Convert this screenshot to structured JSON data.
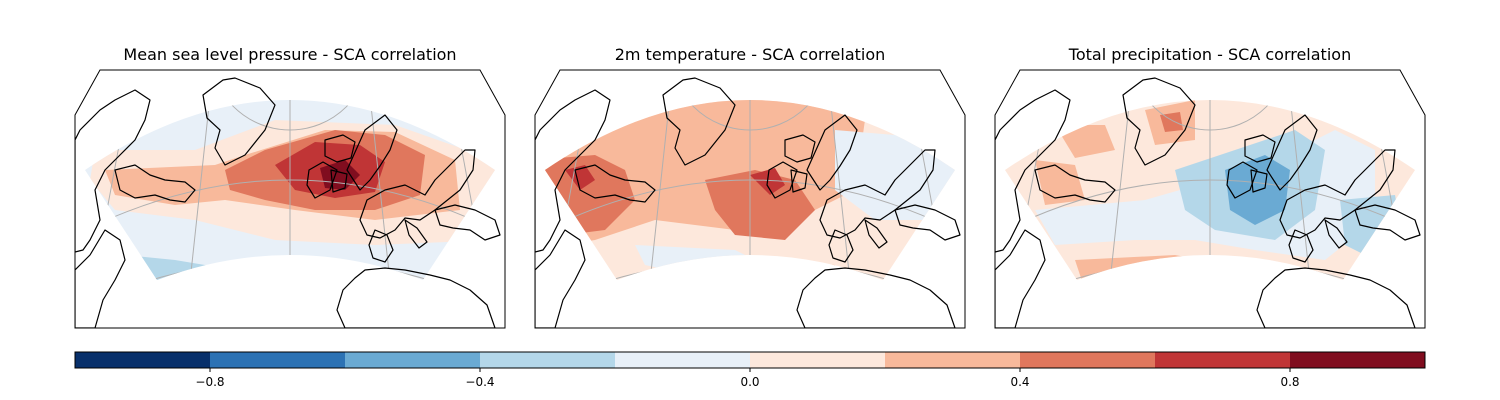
{
  "panels": [
    {
      "id": "mslp",
      "title": "Mean sea level pressure - SCA correlation"
    },
    {
      "id": "t2m",
      "title": "2m temperature - SCA correlation"
    },
    {
      "id": "precip",
      "title": "Total precipitation - SCA correlation"
    }
  ],
  "colorbar": {
    "min": -1.0,
    "max": 1.0,
    "boundaries": [
      -1.0,
      -0.8,
      -0.6,
      -0.4,
      -0.2,
      0.0,
      0.2,
      0.4,
      0.6,
      0.8,
      1.0
    ],
    "colors": [
      "#08306b",
      "#2c72b4",
      "#6aaad3",
      "#b4d7e9",
      "#e8f0f8",
      "#fde8dc",
      "#f8b99b",
      "#e0775d",
      "#c03536",
      "#800d1f"
    ],
    "ticks": [
      {
        "value": -0.8,
        "label": "−0.8"
      },
      {
        "value": -0.4,
        "label": "−0.4"
      },
      {
        "value": 0.0,
        "label": "0.0"
      },
      {
        "value": 0.4,
        "label": "0.4"
      },
      {
        "value": 0.8,
        "label": "0.8"
      }
    ]
  },
  "colors": {
    "land_outline": "#000000",
    "graticule": "#b0b0b0",
    "frame": "#000000"
  }
}
